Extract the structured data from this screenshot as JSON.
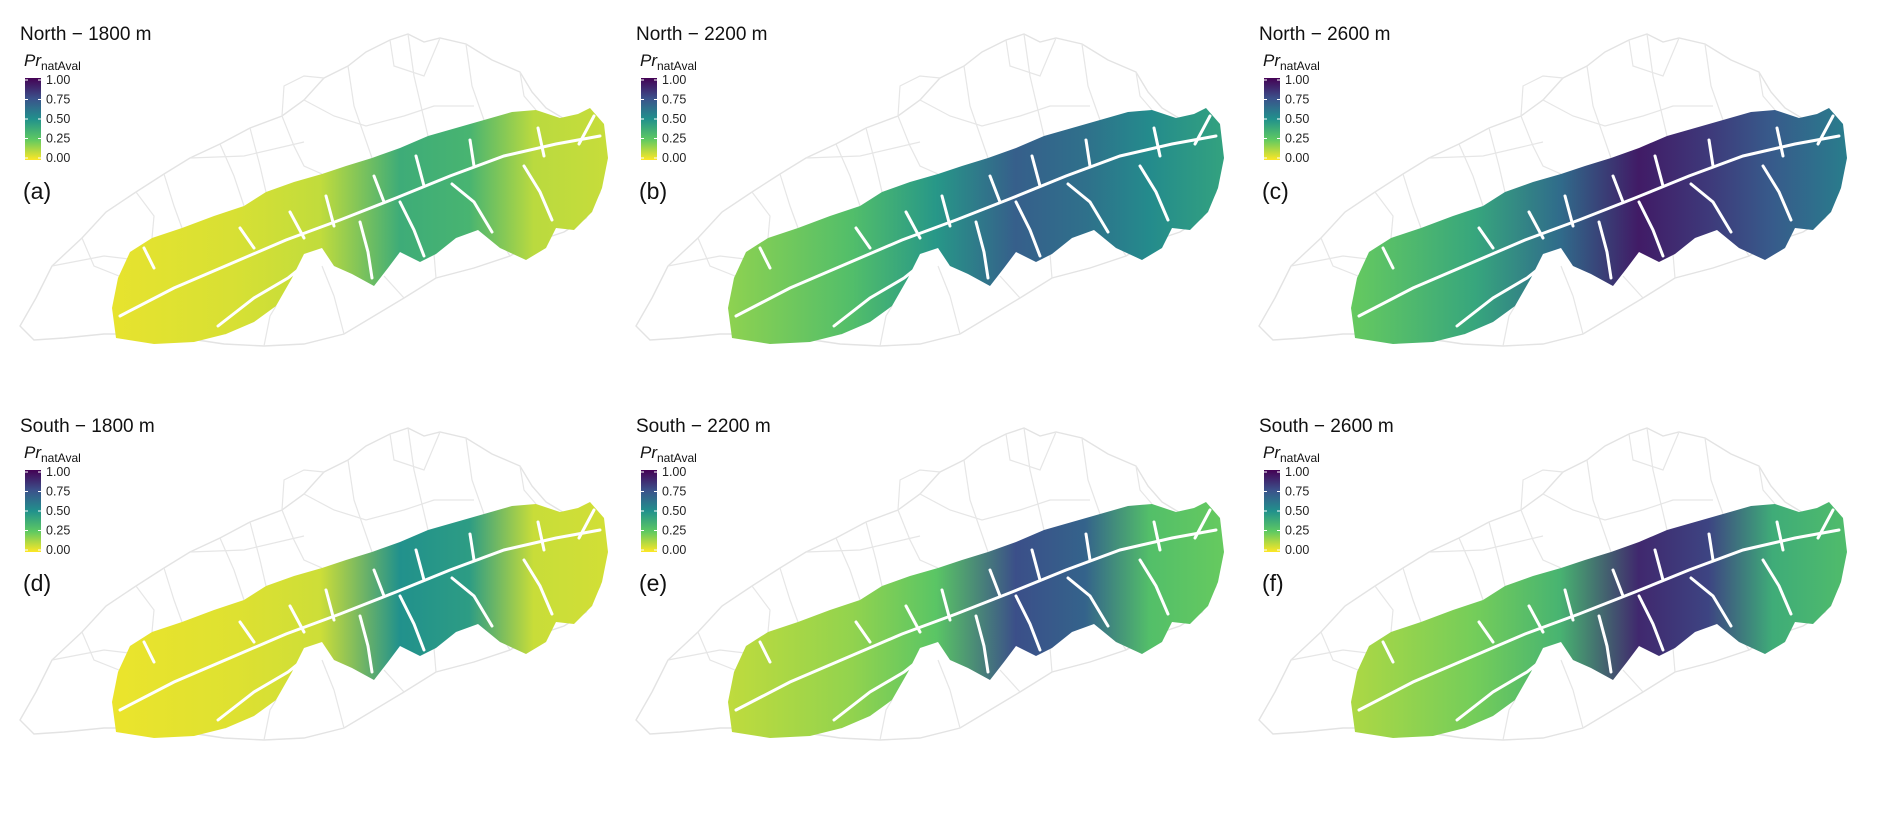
{
  "legend": {
    "title_base": "Pr",
    "title_sub": "natAval",
    "ticks": [
      "1.00",
      "0.75",
      "0.50",
      "0.25",
      "0.00"
    ],
    "colors": [
      "#fde725",
      "#5ec962",
      "#21918c",
      "#3b528b",
      "#440154"
    ]
  },
  "panels": [
    {
      "title": "North − 1800 m",
      "label": "(a)",
      "intensity": 0.1,
      "hotspot": 0.38
    },
    {
      "title": "North − 2200 m",
      "label": "(b)",
      "intensity": 0.5,
      "hotspot": 0.7
    },
    {
      "title": "North − 2600 m",
      "label": "(c)",
      "intensity": 0.68,
      "hotspot": 0.92
    },
    {
      "title": "South − 1800 m",
      "label": "(d)",
      "intensity": 0.08,
      "hotspot": 0.5
    },
    {
      "title": "South − 2200 m",
      "label": "(e)",
      "intensity": 0.28,
      "hotspot": 0.76
    },
    {
      "title": "South − 2600 m",
      "label": "(f)",
      "intensity": 0.36,
      "hotspot": 0.88
    }
  ]
}
